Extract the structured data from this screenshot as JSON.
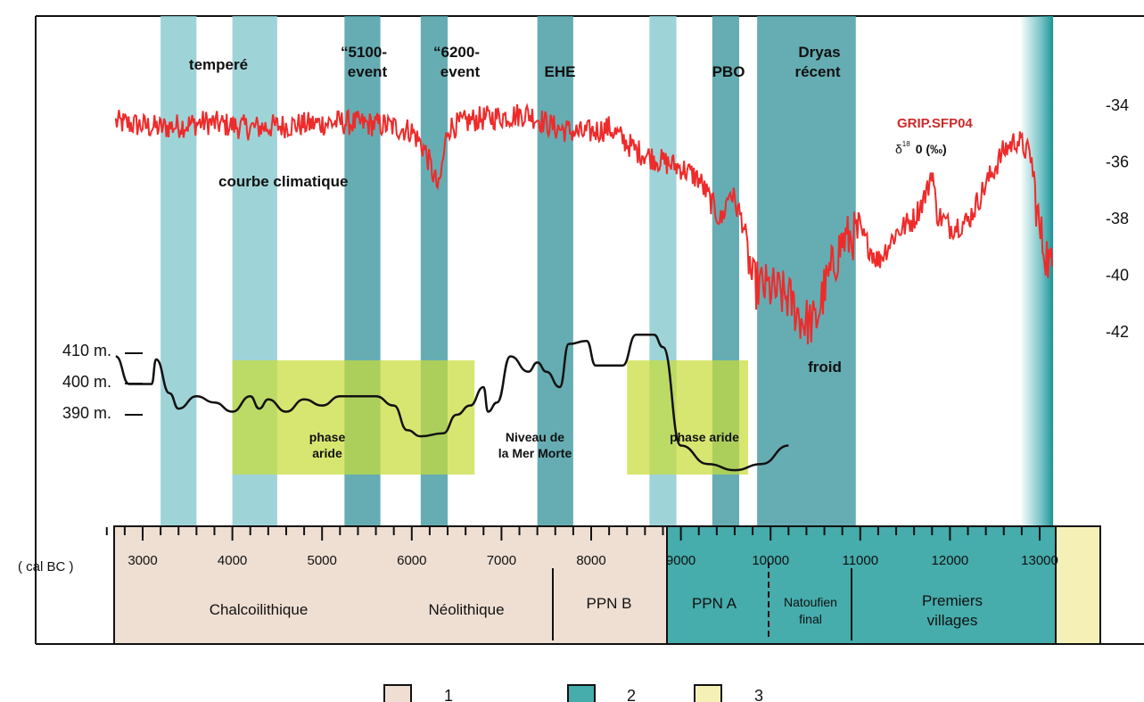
{
  "chart_data": {
    "type": "line",
    "x_label": "( cal BC )",
    "x_ticks": [
      3000,
      4000,
      5000,
      6000,
      7000,
      8000,
      9000,
      10000,
      11000,
      12000,
      13000
    ],
    "x_range": [
      2600,
      13150
    ],
    "y_right_ticks": [
      -34,
      -36,
      -38,
      -40,
      -42
    ],
    "y_right_range": [
      -33,
      -43
    ],
    "y_left_ticks": [
      "410 m.",
      "400 m.",
      "390 m."
    ],
    "climate_curve": {
      "name": "GRIP.SFP04",
      "unit_prefix": "δ",
      "unit_sup": "18",
      "unit_suffix": "0 (‰)",
      "caption": "courbe climatique",
      "color": "#ee2b2b",
      "anchors": [
        [
          2700,
          -34.6
        ],
        [
          3200,
          -34.8
        ],
        [
          3700,
          -34.6
        ],
        [
          4200,
          -34.8
        ],
        [
          4700,
          -34.7
        ],
        [
          5200,
          -34.6
        ],
        [
          5700,
          -34.7
        ],
        [
          6000,
          -34.9
        ],
        [
          6150,
          -35.6
        ],
        [
          6300,
          -37.0
        ],
        [
          6400,
          -34.8
        ],
        [
          6700,
          -34.5
        ],
        [
          7000,
          -34.4
        ],
        [
          7300,
          -34.3
        ],
        [
          7600,
          -34.8
        ],
        [
          7900,
          -35.0
        ],
        [
          8200,
          -34.8
        ],
        [
          8500,
          -35.6
        ],
        [
          8800,
          -36.0
        ],
        [
          9000,
          -36.2
        ],
        [
          9200,
          -36.6
        ],
        [
          9350,
          -37.5
        ],
        [
          9450,
          -38.1
        ],
        [
          9550,
          -37.0
        ],
        [
          9700,
          -38.2
        ],
        [
          9800,
          -40.3
        ],
        [
          10000,
          -40.5
        ],
        [
          10200,
          -40.8
        ],
        [
          10350,
          -41.6
        ],
        [
          10500,
          -41.7
        ],
        [
          10600,
          -40.5
        ],
        [
          10800,
          -38.8
        ],
        [
          11000,
          -38.5
        ],
        [
          11200,
          -39.5
        ],
        [
          11400,
          -38.5
        ],
        [
          11600,
          -38.0
        ],
        [
          11750,
          -37.0
        ],
        [
          11800,
          -36.2
        ],
        [
          11850,
          -37.8
        ],
        [
          12000,
          -38.3
        ],
        [
          12200,
          -38.1
        ],
        [
          12400,
          -36.8
        ],
        [
          12600,
          -35.6
        ],
        [
          12750,
          -35.2
        ],
        [
          12900,
          -35.8
        ],
        [
          13000,
          -38.5
        ],
        [
          13150,
          -40.0
        ]
      ]
    },
    "sea_level_curve": {
      "caption_lines": [
        "Niveau de",
        "la Mer Morte"
      ],
      "color": "#111111",
      "points": [
        [
          2700,
          409
        ],
        [
          2850,
          400
        ],
        [
          3100,
          400
        ],
        [
          3150,
          408
        ],
        [
          3300,
          397
        ],
        [
          3400,
          392
        ],
        [
          3600,
          396
        ],
        [
          3800,
          394
        ],
        [
          4000,
          391
        ],
        [
          4200,
          396
        ],
        [
          4300,
          392
        ],
        [
          4400,
          395
        ],
        [
          4600,
          391
        ],
        [
          4800,
          395
        ],
        [
          5000,
          393
        ],
        [
          5200,
          396
        ],
        [
          5600,
          396
        ],
        [
          5800,
          393
        ],
        [
          5950,
          385
        ],
        [
          6100,
          383
        ],
        [
          6350,
          384
        ],
        [
          6500,
          390
        ],
        [
          6650,
          393
        ],
        [
          6800,
          399
        ],
        [
          6850,
          391
        ],
        [
          6950,
          394
        ],
        [
          7100,
          409
        ],
        [
          7300,
          404
        ],
        [
          7400,
          407
        ],
        [
          7500,
          404
        ],
        [
          7650,
          399
        ],
        [
          7750,
          413
        ],
        [
          7950,
          414
        ],
        [
          8050,
          406
        ],
        [
          8350,
          406
        ],
        [
          8500,
          416
        ],
        [
          8700,
          416
        ],
        [
          8800,
          412
        ],
        [
          9000,
          380
        ],
        [
          9300,
          374
        ],
        [
          9600,
          372
        ],
        [
          9900,
          374
        ],
        [
          10200,
          380
        ]
      ]
    },
    "event_bands": [
      {
        "x": [
          3200,
          3600
        ],
        "color": "#8dccd1",
        "label": "temperé"
      },
      {
        "x": [
          4000,
          4500
        ],
        "color": "#8dccd1",
        "label": ""
      },
      {
        "x": [
          5250,
          5650
        ],
        "color": "#4a9fa6",
        "label": "“5100-\nevent"
      },
      {
        "x": [
          6100,
          6400
        ],
        "color": "#4a9fa6",
        "label": "“6200-\nevent"
      },
      {
        "x": [
          7400,
          7800
        ],
        "color": "#4a9fa6",
        "label": "EHE"
      },
      {
        "x": [
          8650,
          8950
        ],
        "color": "#8dccd1",
        "label": ""
      },
      {
        "x": [
          9350,
          9650
        ],
        "color": "#4a9fa6",
        "label": "PBO"
      },
      {
        "x": [
          9850,
          10950
        ],
        "color": "#4a9fa6",
        "label": "Dryas\nrécent"
      },
      {
        "x": [
          12780,
          13150
        ],
        "color": "#2aa3a6",
        "label": ""
      }
    ],
    "arid_phases": [
      {
        "x": [
          4000,
          6700
        ],
        "label": "phase\naride"
      },
      {
        "x": [
          8400,
          9750
        ],
        "label": "phase aride"
      }
    ],
    "froid_label": "froid",
    "timeline": {
      "periods": [
        {
          "x": [
            3000,
            7500
          ],
          "label": "Chalcoilithique Néolithique"
        },
        {
          "x": [
            7500,
            8500
          ],
          "label": "PPN B"
        },
        {
          "x": [
            8500,
            9600
          ],
          "label": "PPN A"
        },
        {
          "x": [
            9600,
            10550
          ],
          "label": "Natoufien\nfinal"
        },
        {
          "x": [
            10550,
            12800
          ],
          "label": "Premiers\nvillages"
        }
      ],
      "zone_colors": {
        "1": "#efdfd3",
        "2": "#46acac",
        "3": "#f5f1b6"
      }
    },
    "legend": [
      "1",
      "2",
      "3"
    ]
  },
  "text": {
    "temperate": "temperé",
    "e5100_a": "“5100-",
    "e5100_b": "event",
    "e6200_a": "“6200-",
    "e6200_b": "event",
    "ehe": "EHE",
    "pbo": "PBO",
    "dryas_a": "Dryas",
    "dryas_b": "récent",
    "grip": "GRIP.SFP04",
    "delta": "δ",
    "delta_sup": "18",
    "delta_rest": "0 (‰)",
    "courbe": "courbe climatique",
    "froid": "froid",
    "arid1_a": "phase",
    "arid1_b": "aride",
    "arid2": "phase aride",
    "niveau_a": "Niveau de",
    "niveau_b": "la Mer Morte",
    "cal_bc": "( cal BC )",
    "chalco": "Chalcoilithique",
    "neolithique": "Néolithique",
    "ppnb": "PPN B",
    "ppna": "PPN A",
    "natoufien_a": "Natoufien",
    "natoufien_b": "final",
    "premiers_a": "Premiers",
    "premiers_b": "villages",
    "leg1": "1",
    "leg2": "2",
    "leg3": "3"
  }
}
